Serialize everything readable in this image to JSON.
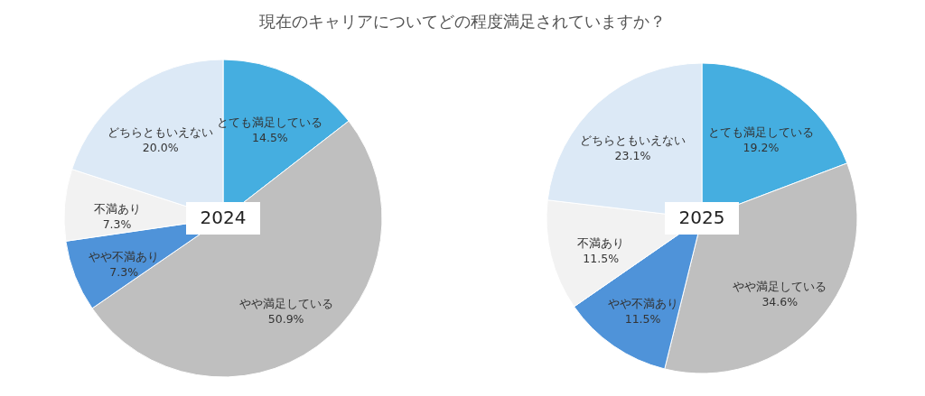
{
  "chart_data": [
    {
      "type": "pie",
      "title": "現在のキャリアについてどの程度満足されていますか？",
      "annotations": [
        "2024"
      ],
      "categories": [
        "とても満足している",
        "やや満足している",
        "やや不満あり",
        "不満あり",
        "どちらともいえない"
      ],
      "values": [
        14.5,
        50.9,
        7.3,
        7.3,
        20.0
      ],
      "value_labels": [
        "14.5%",
        "50.9%",
        "7.3%",
        "7.3%",
        "20.0%"
      ],
      "colors": [
        "#45aee0",
        "#bfbfbf",
        "#4f93d9",
        "#f2f2f2",
        "#dce9f6"
      ]
    },
    {
      "type": "pie",
      "annotations": [
        "2025"
      ],
      "categories": [
        "とても満足している",
        "やや満足している",
        "やや不満あり",
        "不満あり",
        "どちらともいえない"
      ],
      "values": [
        19.2,
        34.6,
        11.5,
        11.5,
        23.1
      ],
      "value_labels": [
        "19.2%",
        "34.6%",
        "11.5%",
        "11.5%",
        "23.1%"
      ],
      "colors": [
        "#45aee0",
        "#bfbfbf",
        "#4f93d9",
        "#f2f2f2",
        "#dce9f6"
      ]
    }
  ]
}
